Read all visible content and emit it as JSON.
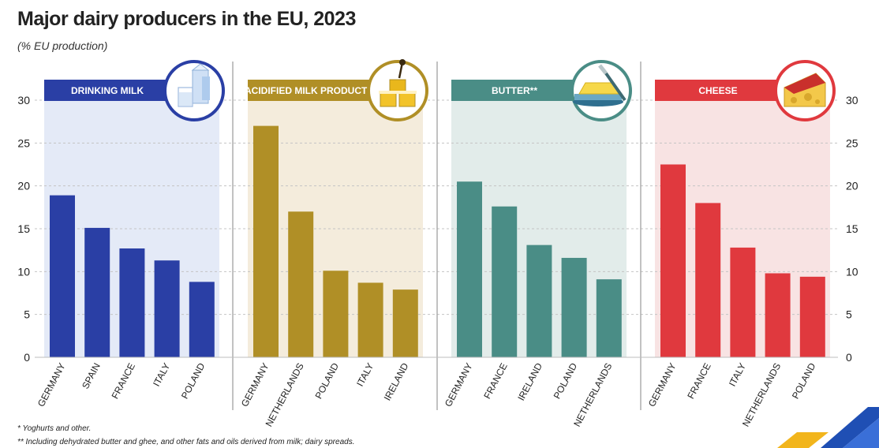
{
  "title": "Major dairy producers in the EU, 2023",
  "subtitle": "(% EU production)",
  "footnotes": [
    "* Yoghurts and other.",
    "** Including dehydrated butter and ghee, and other fats and oils derived from milk; dairy spreads."
  ],
  "y_ticks": [
    "0",
    "5",
    "10",
    "15",
    "20",
    "25",
    "30"
  ],
  "chart_data": [
    {
      "type": "bar",
      "title": "DRINKING MILK",
      "icon": "milk-carton-icon",
      "color": "#2a3fa5",
      "bg": "#e4eaf7",
      "ring": "#2a3fa5",
      "categories": [
        "GERMANY",
        "SPAIN",
        "FRANCE",
        "ITALY",
        "POLAND"
      ],
      "values": [
        18.9,
        15.1,
        12.7,
        11.3,
        8.8
      ],
      "ylim": [
        0,
        30
      ]
    },
    {
      "type": "bar",
      "title": "ACIDIFIED MILK PRODUCTS*",
      "icon": "yoghurt-cups-icon",
      "color": "#b08f26",
      "bg": "#f4ecdc",
      "ring": "#b08f26",
      "categories": [
        "GERMANY",
        "NETHERLANDS",
        "POLAND",
        "ITALY",
        "IRELAND"
      ],
      "values": [
        27.0,
        17.0,
        10.1,
        8.7,
        7.9
      ],
      "ylim": [
        0,
        30
      ]
    },
    {
      "type": "bar",
      "title": "BUTTER**",
      "icon": "butter-dish-icon",
      "color": "#4a8d86",
      "bg": "#e2ecea",
      "ring": "#4a8d86",
      "categories": [
        "GERMANY",
        "FRANCE",
        "IRELAND",
        "POLAND",
        "NETHERLANDS"
      ],
      "values": [
        20.5,
        17.6,
        13.1,
        11.6,
        9.1
      ],
      "ylim": [
        0,
        30
      ]
    },
    {
      "type": "bar",
      "title": "CHEESE",
      "icon": "cheese-icon",
      "color": "#e0393e",
      "bg": "#f8e3e3",
      "ring": "#e0393e",
      "categories": [
        "GERMANY",
        "FRANCE",
        "ITALY",
        "NETHERLANDS",
        "POLAND"
      ],
      "values": [
        22.5,
        18.0,
        12.8,
        9.8,
        9.4
      ],
      "ylim": [
        0,
        30
      ]
    }
  ]
}
